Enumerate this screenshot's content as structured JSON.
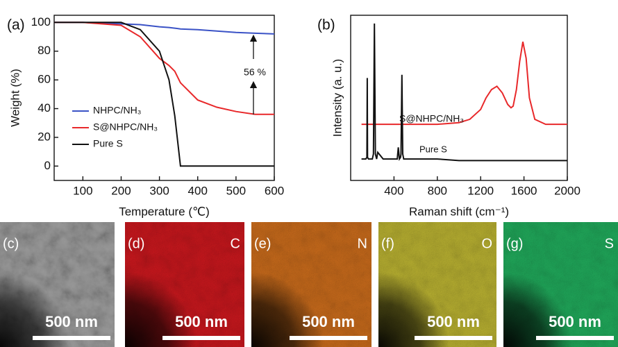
{
  "chart_data": [
    {
      "type": "line",
      "panel_label": "(a)",
      "x_label": "Temperature (℃)",
      "y_label": "Weight (%)",
      "xlim": [
        25,
        600
      ],
      "ylim": [
        -10,
        105
      ],
      "xticks": [
        100,
        200,
        300,
        400,
        500,
        600
      ],
      "yticks": [
        0,
        20,
        40,
        60,
        80,
        100
      ],
      "x": [
        25,
        100,
        200,
        250,
        300,
        325,
        340,
        355,
        400,
        450,
        500,
        550,
        600
      ],
      "series": [
        {
          "name": "NHPC/NH₃",
          "color": "#3a52c6",
          "values": [
            100,
            100,
            99,
            98.5,
            97,
            96.5,
            96,
            95.5,
            95,
            94,
            93,
            92.5,
            92
          ]
        },
        {
          "name": "S@NHPC/NH₃",
          "color": "#e8282a",
          "values": [
            100,
            100,
            98,
            90,
            75,
            70,
            66,
            58,
            46,
            41,
            38,
            36,
            36
          ]
        },
        {
          "name": "Pure S",
          "color": "#111111",
          "values": [
            100,
            100,
            100,
            95,
            80,
            60,
            35,
            0,
            0,
            0,
            0,
            0,
            0
          ]
        }
      ],
      "annotation": "56 %"
    },
    {
      "type": "line",
      "panel_label": "(b)",
      "x_label": "Raman shift (cm⁻¹)",
      "y_label": "Intensity (a. u.)",
      "xlim": [
        0,
        2000
      ],
      "ylim": [
        0,
        100
      ],
      "xticks": [
        400,
        800,
        1200,
        1600,
        2000
      ],
      "series": [
        {
          "name": "S@NHPC/NH₃",
          "color": "#e8282a",
          "x": [
            100,
            400,
            800,
            1000,
            1100,
            1200,
            1250,
            1300,
            1350,
            1400,
            1450,
            1480,
            1500,
            1530,
            1560,
            1590,
            1620,
            1650,
            1700,
            1800,
            2000
          ],
          "values": [
            34,
            34,
            34,
            35,
            37,
            43,
            50,
            55,
            57,
            53,
            46,
            44,
            45,
            55,
            72,
            84,
            74,
            50,
            37,
            34,
            34
          ]
        },
        {
          "name": "Pure S",
          "color": "#111111",
          "x": [
            100,
            140,
            150,
            153,
            156,
            165,
            200,
            210,
            219,
            228,
            240,
            250,
            300,
            400,
            430,
            440,
            450,
            460,
            465,
            473,
            481,
            490,
            600,
            800,
            1000,
            1200,
            1600,
            2000
          ],
          "values": [
            13,
            13,
            14,
            62,
            14,
            13,
            13,
            16,
            95,
            16,
            13,
            17,
            13,
            13,
            13,
            20,
            13,
            14,
            16,
            64,
            16,
            13,
            13,
            13,
            12,
            12,
            12,
            12
          ]
        }
      ]
    }
  ],
  "image_panels": [
    {
      "label": "(c)",
      "scale_bar": "500 nm"
    },
    {
      "label": "(d)",
      "element": "C",
      "scale_bar": "500 nm"
    },
    {
      "label": "(e)",
      "element": "N",
      "scale_bar": "500 nm"
    },
    {
      "label": "(f)",
      "element": "O",
      "scale_bar": "500 nm"
    },
    {
      "label": "(g)",
      "element": "S",
      "scale_bar": "500 nm"
    }
  ]
}
